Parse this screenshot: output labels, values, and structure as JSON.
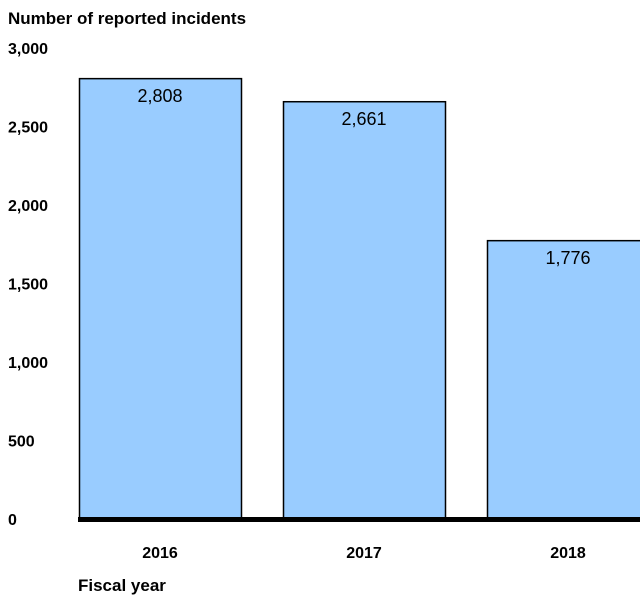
{
  "chart_data": {
    "type": "bar",
    "ylabel": "Number of reported incidents",
    "xlabel": "Fiscal year",
    "categories": [
      "2016",
      "2017",
      "2018"
    ],
    "values": [
      2808,
      2661,
      1776
    ],
    "value_labels": [
      "2,808",
      "2,661",
      "1,776"
    ],
    "ylim": [
      0,
      3000
    ],
    "yticks": [
      0,
      500,
      1000,
      1500,
      2000,
      2500,
      3000
    ],
    "ytick_labels": [
      "0",
      "500",
      "1,000",
      "1,500",
      "2,000",
      "2,500",
      "3,000"
    ],
    "grid": false,
    "bar_color": "#99ccff",
    "bar_edge_color": "#000000",
    "baseline_color": "#000000"
  }
}
